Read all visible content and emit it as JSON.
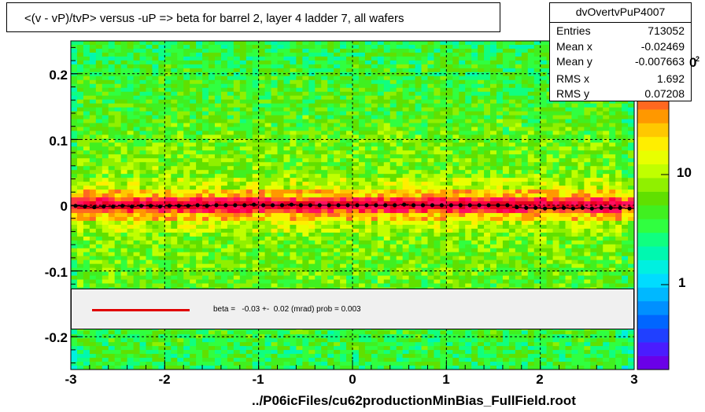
{
  "title": "<(v - vP)/tvP> versus  -uP => beta for barrel 2, layer 4 ladder 7, all wafers",
  "stats": {
    "name": "dvOvertvPuP4007",
    "rows": [
      {
        "label": "Entries",
        "value": "713052"
      },
      {
        "label": "Mean x",
        "value": "-0.02469"
      },
      {
        "label": "Mean y",
        "value": "-0.007663"
      },
      {
        "label": "RMS x",
        "value": "1.692"
      },
      {
        "label": "RMS y",
        "value": "0.07208"
      }
    ]
  },
  "fit_text": "beta =   -0.03 +-  0.02 (mrad) prob = 0.003",
  "xaxis_title": "../P06icFiles/cu62productionMinBias_FullField.root",
  "colors": {
    "fit_line": "#e00000",
    "markers": "#000000",
    "legend_bg": "#f0f0f0"
  },
  "chart_data": {
    "type": "heatmap",
    "title": "<(v - vP)/tvP> versus  -uP => beta for barrel 2, layer 4 ladder 7, all wafers",
    "xlabel": "../P06icFiles/cu62productionMinBias_FullField.root",
    "ylabel": "",
    "xlim": [
      -3,
      3
    ],
    "ylim": [
      -0.25,
      0.25
    ],
    "x_ticks": [
      -3,
      -2,
      -1,
      0,
      1,
      2,
      3
    ],
    "x_tick_labels": [
      "-3",
      "-2",
      "-1",
      "0",
      "1",
      "2",
      "3"
    ],
    "y_ticks": [
      -0.2,
      -0.1,
      0,
      0.1,
      0.2
    ],
    "y_tick_labels": [
      "-0.2",
      "-0.1",
      "0",
      "0.1",
      "0.2"
    ],
    "z_scale": "log",
    "z_tick_labels": [
      "1",
      "10"
    ],
    "z_tick_values": [
      1,
      10
    ],
    "z_exponent_label": "2",
    "grid": true,
    "profile_points": {
      "x": [
        -2.95,
        -2.85,
        -2.75,
        -2.65,
        -2.55,
        -2.45,
        -2.35,
        -2.25,
        -2.15,
        -2.05,
        -1.95,
        -1.85,
        -1.75,
        -1.65,
        -1.55,
        -1.45,
        -1.35,
        -1.25,
        -1.15,
        -1.05,
        -0.95,
        -0.85,
        -0.75,
        -0.65,
        -0.55,
        -0.45,
        -0.35,
        -0.25,
        -0.15,
        -0.05,
        0.05,
        0.15,
        0.25,
        0.35,
        0.45,
        0.55,
        0.65,
        0.75,
        0.85,
        0.95,
        1.05,
        1.15,
        1.25,
        1.35,
        1.45,
        1.55,
        1.65,
        1.75,
        1.85,
        1.95,
        2.05,
        2.15,
        2.25,
        2.35,
        2.45,
        2.55,
        2.65,
        2.75,
        2.85,
        2.95
      ],
      "y": [
        -0.001,
        -0.002,
        -0.003,
        -0.002,
        -0.002,
        -0.001,
        -0.002,
        -0.001,
        -0.001,
        -0.002,
        -0.001,
        -0.001,
        -0.001,
        0.0,
        -0.001,
        0.0,
        0.0,
        0.0,
        0.0,
        0.001,
        0.0,
        0.0,
        0.0,
        0.001,
        0.0,
        0.0,
        0.0,
        0.0,
        0.0,
        0.0,
        0.0,
        0.0,
        0.0,
        0.0,
        0.0,
        0.001,
        0.0,
        0.0,
        0.0,
        0.0,
        0.0,
        0.0,
        0.0,
        0.0,
        0.0,
        0.0,
        0.0,
        -0.003,
        -0.004,
        -0.004,
        -0.005,
        -0.005,
        -0.004,
        -0.005,
        -0.004,
        -0.005,
        -0.004,
        -0.004,
        -0.004,
        -0.005
      ]
    },
    "fit": {
      "label": "beta =   -0.03 +-  0.02 (mrad) prob = 0.003",
      "value_mrad": -0.03,
      "error_mrad": 0.02,
      "prob": 0.003
    }
  }
}
